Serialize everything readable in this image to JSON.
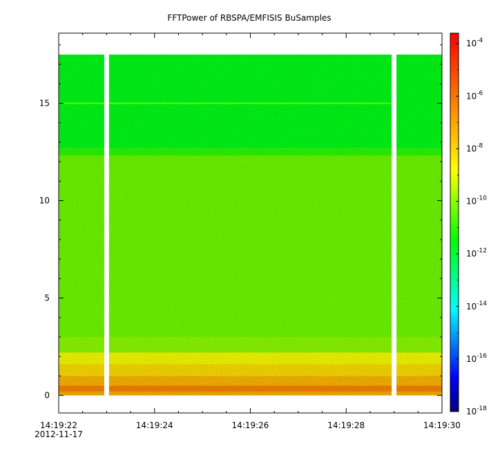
{
  "chart_data": {
    "type": "heatmap",
    "title": "FFTPower of RBSPA/EMFISIS  BuSamples",
    "x_axis": {
      "type": "time",
      "range": [
        "14:19:22",
        "14:19:30"
      ],
      "tick_labels": [
        "14:19:22",
        "14:19:24",
        "14:19:26",
        "14:19:28",
        "14:19:30"
      ],
      "tick_values_sec": [
        0,
        2,
        4,
        6,
        8
      ],
      "date_label": "2012-11-17"
    },
    "y_axis": {
      "ylim": [
        -0.9,
        18.6
      ],
      "ticks": [
        0,
        5,
        10,
        15
      ],
      "tick_labels": [
        "0",
        "5",
        "10",
        "15"
      ],
      "data_max": 17.5
    },
    "colorbar": {
      "scale": "log",
      "range_exp": [
        -18,
        -3.6
      ],
      "tick_exps": [
        -18,
        -16,
        -14,
        -12,
        -10,
        -8,
        -6,
        -4
      ],
      "tick_base": "10",
      "tick_exponents": [
        "-18",
        "-16",
        "-14",
        "-12",
        "-10",
        "-8",
        "-6",
        "-4"
      ],
      "colormap": [
        "#00007f",
        "#0000ff",
        "#007fff",
        "#00ffff",
        "#00ff7f",
        "#00ff00",
        "#7fff00",
        "#ffff00",
        "#ffbf00",
        "#ff7f00",
        "#ff3f00",
        "#ff0000"
      ]
    },
    "data_gaps_sec": [
      [
        0.95,
        1.05
      ],
      [
        6.95,
        7.05
      ]
    ],
    "frequency_bands": [
      {
        "y0": 0.0,
        "y1": 0.2,
        "log_power": -7.2
      },
      {
        "y0": 0.2,
        "y1": 0.5,
        "log_power": -6.3
      },
      {
        "y0": 0.5,
        "y1": 1.0,
        "log_power": -7.4
      },
      {
        "y0": 1.0,
        "y1": 1.6,
        "log_power": -8.2
      },
      {
        "y0": 1.6,
        "y1": 2.2,
        "log_power": -8.9
      },
      {
        "y0": 2.2,
        "y1": 3.0,
        "log_power": -10.0
      },
      {
        "y0": 3.0,
        "y1": 12.3,
        "log_power": -10.3
      },
      {
        "y0": 12.3,
        "y1": 12.7,
        "log_power": -11.0
      },
      {
        "y0": 12.7,
        "y1": 17.5,
        "log_power": -11.7
      }
    ],
    "line_features": [
      {
        "y": 15.0,
        "log_power": -10.6
      }
    ]
  }
}
